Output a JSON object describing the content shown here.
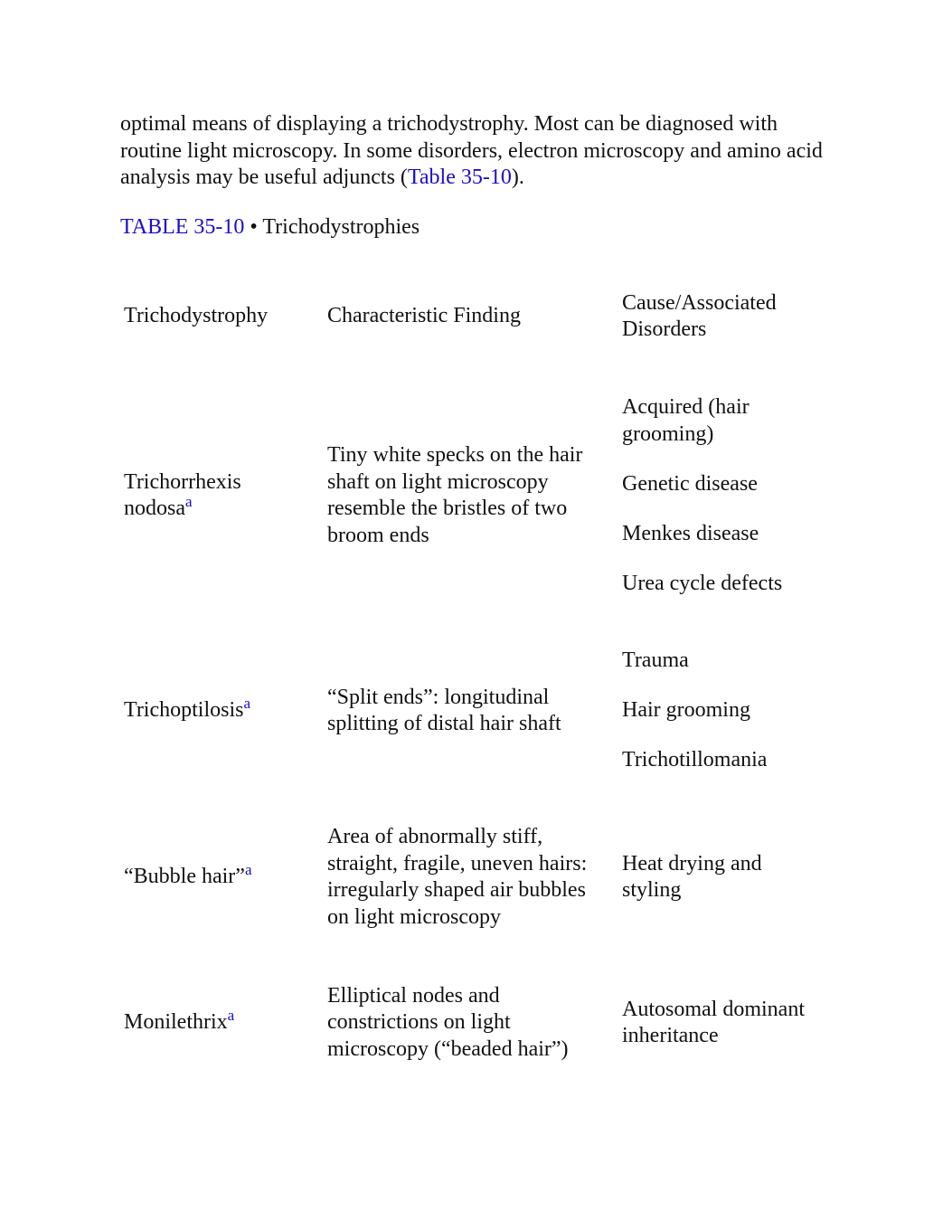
{
  "paragraph": {
    "text_before": "optimal means of displaying a trichodystrophy. Most can be diagnosed with routine light microscopy. In some disorders, electron microscopy and amino acid analysis may be useful adjuncts (",
    "link": "Table 35-10",
    "text_after": ")."
  },
  "caption": {
    "label": "TABLE 35-10",
    "title": " • Trichodystrophies"
  },
  "table": {
    "header": [
      "Trichodystrophy",
      "Characteristic Finding",
      "Cause/Associated Disorders"
    ],
    "rows": [
      {
        "name": "Trichorrhexis nodosa",
        "footnote": "a",
        "finding": "Tiny white specks on the hair shaft on light microscopy resemble the bristles of two broom ends",
        "causes": [
          "Acquired (hair grooming)",
          "Genetic disease",
          "Menkes disease",
          "Urea cycle defects"
        ]
      },
      {
        "name": "Trichoptilosis",
        "footnote": "a",
        "finding": "“Split ends”: longitudinal splitting of distal hair shaft",
        "causes": [
          "Trauma",
          "Hair grooming",
          "Trichotillomania"
        ]
      },
      {
        "name": "“Bubble hair”",
        "footnote": "a",
        "finding": "Area of abnormally stiff, straight, fragile, uneven hairs: irregularly shaped air bubbles on light microscopy",
        "causes": [
          "Heat drying and styling"
        ]
      },
      {
        "name": "Monilethrix",
        "footnote": "a",
        "finding": "Elliptical nodes and constrictions on light microscopy (“beaded hair”)",
        "causes": [
          "Autosomal dominant inheritance"
        ]
      }
    ]
  }
}
